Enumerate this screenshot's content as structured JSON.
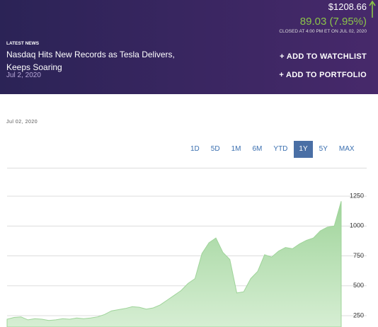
{
  "header": {
    "price": "$1208.66",
    "change": "89.03  (7.95%)",
    "closed": "CLOSED AT 4:00 PM ET ON JUL 02, 2020",
    "news_label": "LATEST NEWS",
    "news_title": "Nasdaq Hits New Records as Tesla Delivers, Keeps Soaring",
    "news_date": "Jul 2, 2020",
    "watchlist": "+ ADD TO WATCHLIST",
    "portfolio": "+ ADD TO PORTFOLIO"
  },
  "date_label": "Jul 02, 2020",
  "ranges": [
    "1D",
    "5D",
    "1M",
    "6M",
    "YTD",
    "1Y",
    "5Y",
    "MAX"
  ],
  "active_range": "1Y",
  "chart_data": {
    "type": "area",
    "color": "#9fd49a",
    "values": [
      220,
      235,
      240,
      215,
      225,
      220,
      210,
      215,
      225,
      220,
      230,
      225,
      230,
      240,
      260,
      290,
      300,
      310,
      325,
      320,
      305,
      315,
      340,
      380,
      420,
      460,
      520,
      560,
      770,
      860,
      900,
      780,
      720,
      440,
      450,
      560,
      620,
      760,
      740,
      790,
      820,
      810,
      850,
      880,
      900,
      960,
      990,
      1000,
      1208
    ],
    "ylim": [
      155,
      1470
    ],
    "yticks": [
      250,
      500,
      750,
      1000,
      1250
    ],
    "grid": true
  }
}
